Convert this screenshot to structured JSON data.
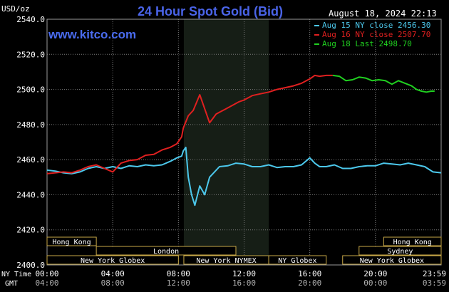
{
  "chart_data": {
    "type": "line",
    "title": "24 Hour Spot Gold (Bid)",
    "site": "www.kitco.com",
    "date_stamp": "August 18, 2024 22:13",
    "ylabel": "USD/oz",
    "ylim": [
      2400,
      2540
    ],
    "y_ticks": [
      "2540.0",
      "2520.0",
      "2500.0",
      "2480.0",
      "2460.0",
      "2440.0",
      "2420.0",
      "2400.0"
    ],
    "x_row_labels": {
      "ny": "NY Time",
      "gmt": "GMT"
    },
    "x_ticks_ny": [
      "00:00",
      "04:00",
      "08:00",
      "12:00",
      "16:00",
      "20:00",
      "23:59"
    ],
    "x_ticks_gmt": [
      "04:00",
      "08:00",
      "12:00",
      "16:00",
      "20:00",
      "00:00",
      "03:59"
    ],
    "legend": [
      {
        "text": "Aug 15 NY close 2456.30",
        "color": "#4cc8ec"
      },
      {
        "text": "Aug 16 NY close 2507.70",
        "color": "#e02020"
      },
      {
        "text": "Aug 18 Last 2498.70",
        "color": "#20d020"
      }
    ],
    "sessions": [
      {
        "name": "Hong Kong",
        "start": 0,
        "end": 3
      },
      {
        "name": "London",
        "start": 3,
        "end": 11.5
      },
      {
        "name": "New York Globex",
        "start": 0,
        "end": 8
      },
      {
        "name": "New York NYMEX",
        "start": 8.33,
        "end": 13.5
      },
      {
        "name": "NY Globex",
        "start": 13.5,
        "end": 17
      },
      {
        "name": "Hong Kong",
        "start": 20.5,
        "end": 24
      },
      {
        "name": "Sydney",
        "start": 19,
        "end": 24
      },
      {
        "name": "New York Globex",
        "start": 18,
        "end": 24
      }
    ],
    "shade_range": [
      8.33,
      13.5
    ],
    "series": [
      {
        "color": "#4cc8ec",
        "x": [
          0,
          0.5,
          1,
          1.5,
          2,
          2.5,
          3,
          3.5,
          4,
          4.5,
          5,
          5.5,
          6,
          6.5,
          7,
          7.5,
          7.9,
          8.2,
          8.3,
          8.45,
          8.6,
          8.8,
          9.0,
          9.3,
          9.6,
          9.9,
          10.2,
          10.5,
          11,
          11.5,
          12,
          12.5,
          13,
          13.5,
          14,
          14.5,
          15,
          15.5,
          16,
          16.3,
          16.6,
          17,
          17.5,
          18,
          18.5,
          19,
          19.5,
          20,
          20.5,
          21,
          21.5,
          22,
          22.5,
          23,
          23.5,
          24
        ],
        "y": [
          2454,
          2453.5,
          2452.5,
          2452,
          2453,
          2455,
          2456,
          2455,
          2456,
          2455,
          2456.5,
          2456,
          2457,
          2456.5,
          2457,
          2459,
          2461,
          2462,
          2465,
          2467,
          2450,
          2440,
          2434,
          2445,
          2440,
          2450,
          2453,
          2456,
          2456.5,
          2458,
          2457.5,
          2456,
          2456,
          2457,
          2455.5,
          2456,
          2456,
          2457,
          2461,
          2458,
          2456,
          2456,
          2457,
          2455,
          2455,
          2456,
          2456.5,
          2456.5,
          2458,
          2457.5,
          2457,
          2458,
          2457,
          2456,
          2453,
          2452.5
        ]
      },
      {
        "color": "#e02020",
        "x": [
          0,
          0.5,
          1,
          1.5,
          2,
          2.5,
          3,
          3.5,
          4,
          4.5,
          5,
          5.5,
          6,
          6.5,
          7,
          7.5,
          7.9,
          8.2,
          8.3,
          8.6,
          8.9,
          9.3,
          9.6,
          9.9,
          10.3,
          10.5,
          10.9,
          11.3,
          11.7,
          12,
          12.5,
          13,
          13.5,
          14,
          14.5,
          15,
          15.5,
          16,
          16.3,
          16.6,
          17,
          17.4
        ],
        "y": [
          2452,
          2452.5,
          2453,
          2452.5,
          2454,
          2456,
          2457,
          2455,
          2453,
          2458,
          2459.5,
          2460,
          2462.5,
          2463,
          2465.5,
          2467,
          2469,
          2473,
          2478,
          2485,
          2488,
          2497,
          2489,
          2481,
          2486,
          2487,
          2489,
          2491,
          2493,
          2494,
          2496.5,
          2497.5,
          2498.5,
          2500,
          2501,
          2502,
          2503.5,
          2506,
          2508,
          2507.5,
          2508,
          2508
        ]
      },
      {
        "color": "#20d020",
        "x": [
          17.4,
          17.8,
          18.2,
          18.6,
          19,
          19.4,
          19.8,
          20.2,
          20.6,
          21,
          21.4,
          21.8,
          22.2,
          22.5,
          22.8,
          23.1,
          23.4,
          23.6
        ],
        "y": [
          2508,
          2507.5,
          2505,
          2505.5,
          2507,
          2506.5,
          2505,
          2505.5,
          2505,
          2503,
          2505,
          2503.5,
          2502,
          2500,
          2499,
          2498.5,
          2499,
          2499
        ]
      }
    ]
  }
}
